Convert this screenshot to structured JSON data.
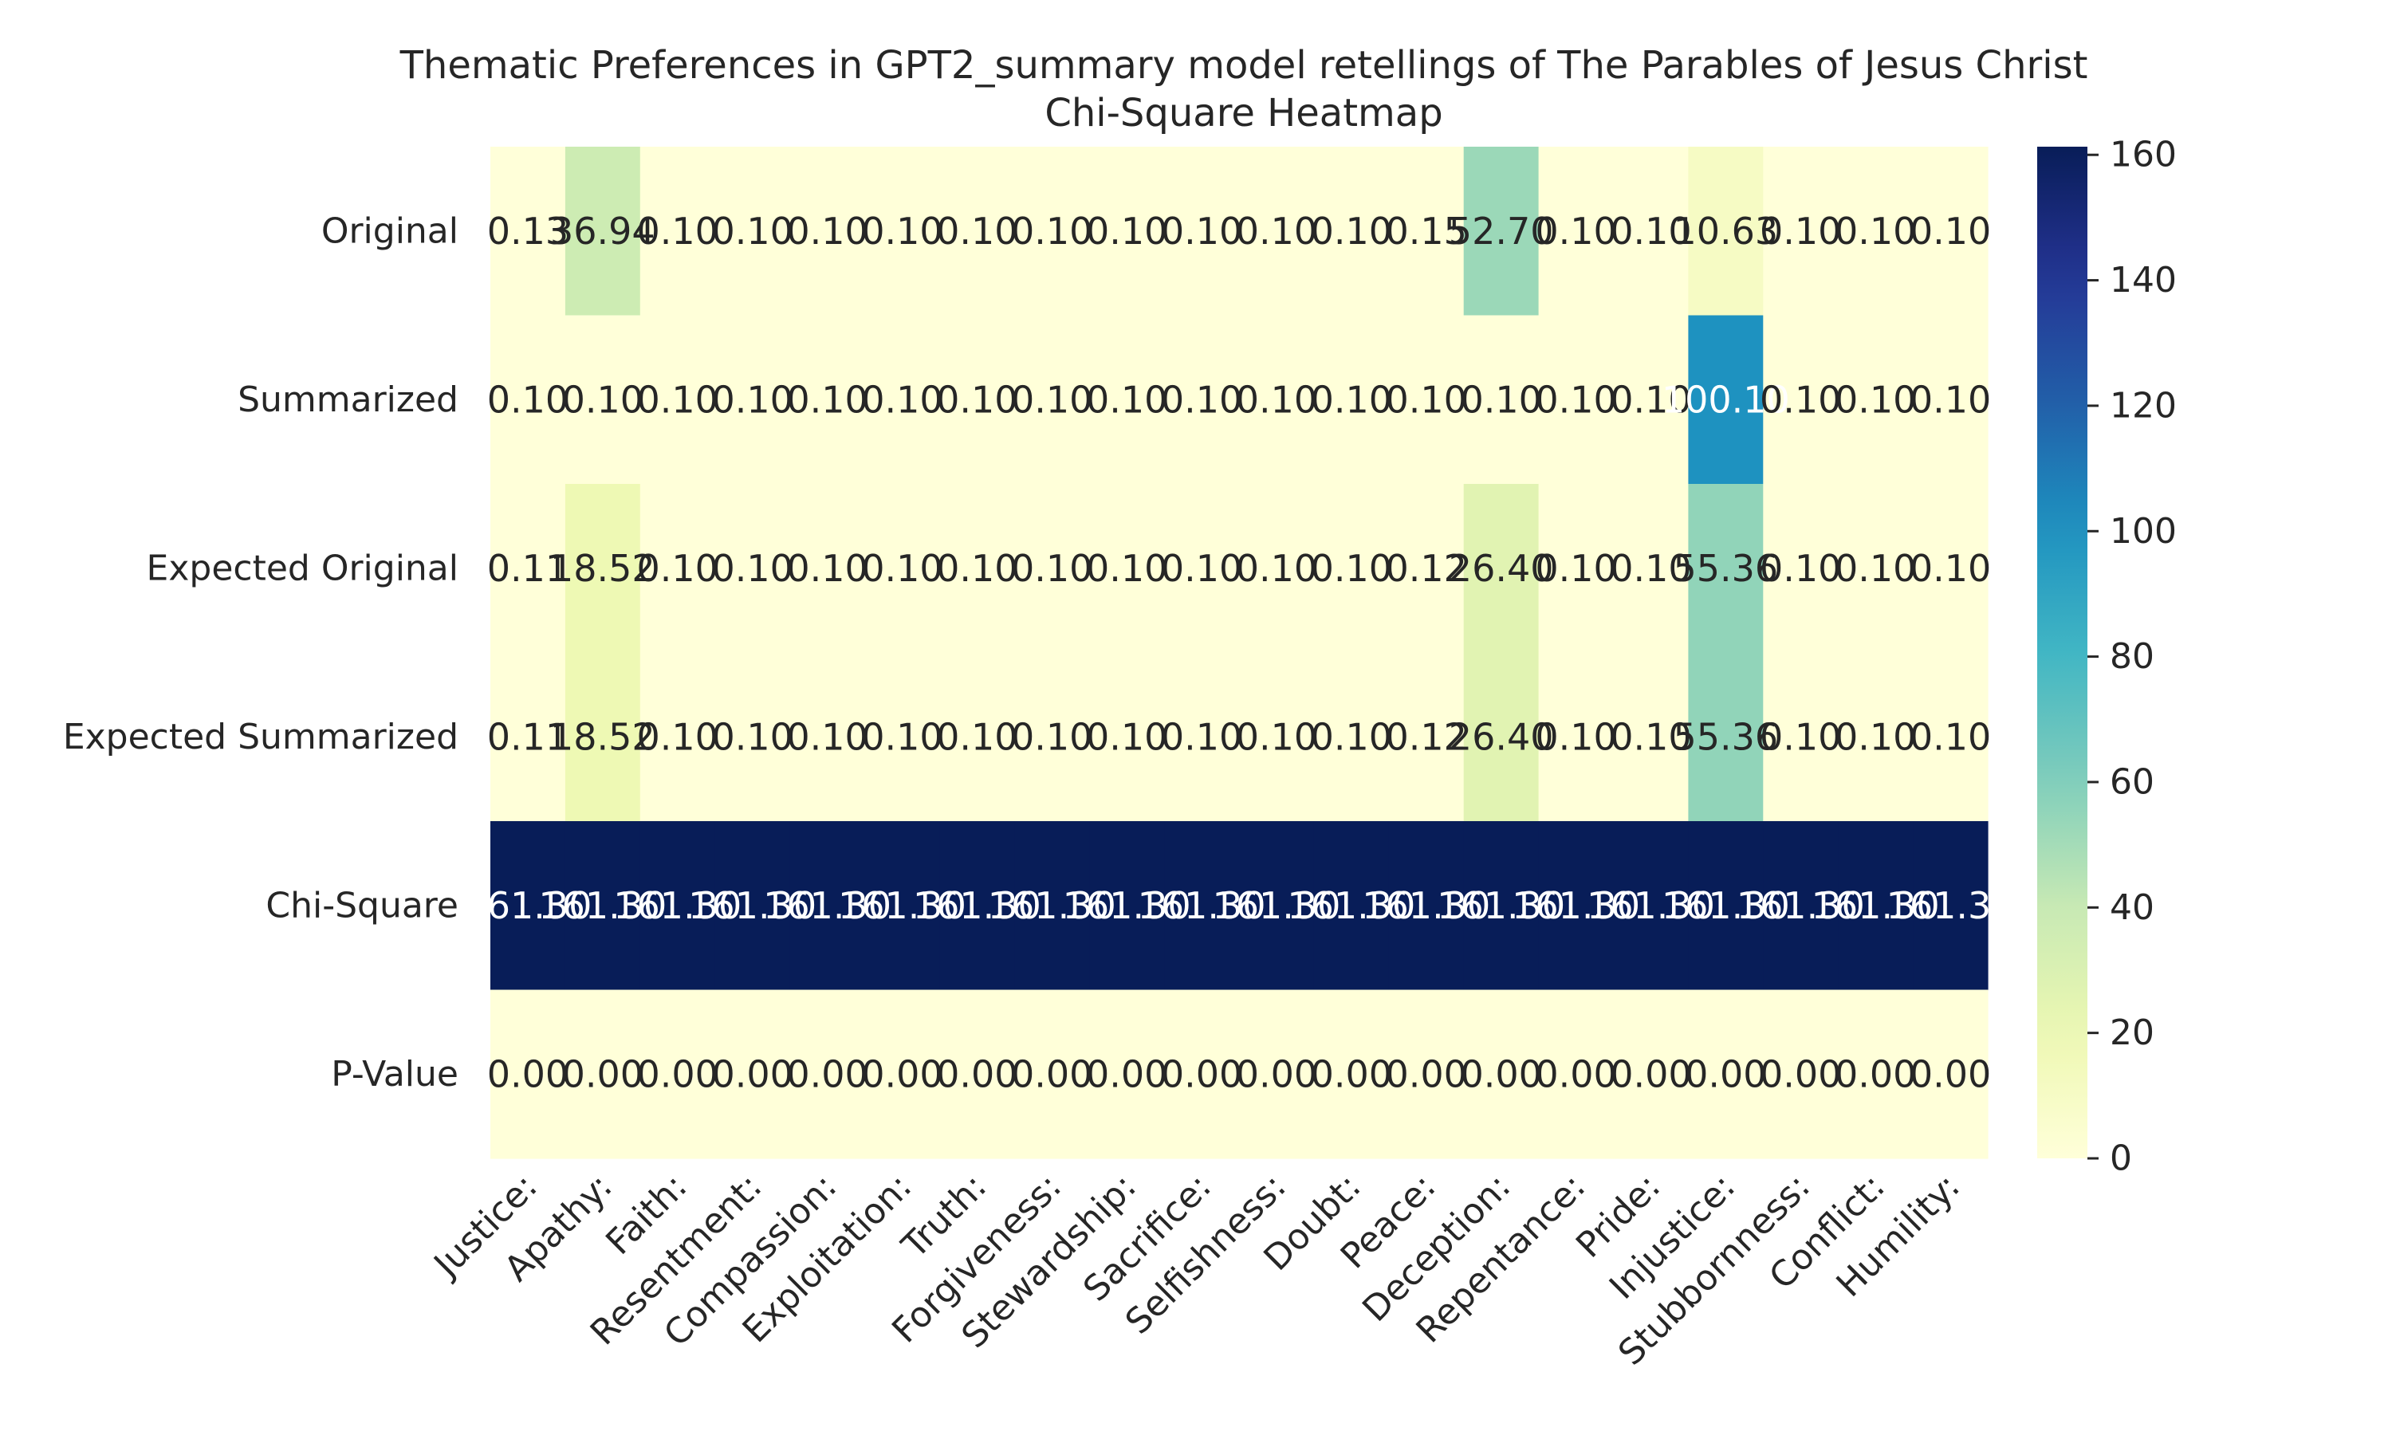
{
  "chart_data": {
    "type": "heatmap",
    "title": "Thematic Preferences in GPT2_summary model retellings of The Parables of Jesus Christ",
    "subtitle": "Chi-Square Heatmap",
    "xlabel": "",
    "ylabel": "",
    "colormap": "YlGnBu",
    "colorbar": {
      "min": 0,
      "max": 161.3,
      "ticks": [
        0,
        20,
        40,
        60,
        80,
        100,
        120,
        140,
        160
      ]
    },
    "x_labels": [
      "Justice:",
      "Apathy:",
      "Faith:",
      "Resentment:",
      "Compassion:",
      "Exploitation:",
      "Truth:",
      "Forgiveness:",
      "Stewardship:",
      "Sacrifice:",
      "Selfishness:",
      "Doubt:",
      "Peace:",
      "Deception:",
      "Repentance:",
      "Pride:",
      "Injustice:",
      "Stubbornness:",
      "Conflict:",
      "Humility:"
    ],
    "y_labels": [
      "Original",
      "Summarized",
      "Expected Original",
      "Expected Summarized",
      "Chi-Square",
      "P-Value"
    ],
    "values": [
      [
        0.13,
        36.94,
        0.1,
        0.1,
        0.1,
        0.1,
        0.1,
        0.1,
        0.1,
        0.1,
        0.1,
        0.1,
        0.15,
        52.7,
        0.1,
        0.1,
        10.63,
        0.1,
        0.1,
        0.1
      ],
      [
        0.1,
        0.1,
        0.1,
        0.1,
        0.1,
        0.1,
        0.1,
        0.1,
        0.1,
        0.1,
        0.1,
        0.1,
        0.1,
        0.1,
        0.1,
        0.1,
        100.1,
        0.1,
        0.1,
        0.1
      ],
      [
        0.11,
        18.52,
        0.1,
        0.1,
        0.1,
        0.1,
        0.1,
        0.1,
        0.1,
        0.1,
        0.1,
        0.1,
        0.12,
        26.4,
        0.1,
        0.1,
        55.36,
        0.1,
        0.1,
        0.1
      ],
      [
        0.11,
        18.52,
        0.1,
        0.1,
        0.1,
        0.1,
        0.1,
        0.1,
        0.1,
        0.1,
        0.1,
        0.1,
        0.12,
        26.4,
        0.1,
        0.1,
        55.36,
        0.1,
        0.1,
        0.1
      ],
      [
        161.3,
        161.3,
        161.3,
        161.3,
        161.3,
        161.3,
        161.3,
        161.3,
        161.3,
        161.3,
        161.3,
        161.3,
        161.3,
        161.3,
        161.3,
        161.3,
        161.3,
        161.3,
        161.3,
        161.3
      ],
      [
        0.0,
        0.0,
        0.0,
        0.0,
        0.0,
        0.0,
        0.0,
        0.0,
        0.0,
        0.0,
        0.0,
        0.0,
        0.0,
        0.0,
        0.0,
        0.0,
        0.0,
        0.0,
        0.0,
        0.0
      ]
    ],
    "value_format": "2 decimals",
    "grid": false,
    "legend": "colorbar-right"
  }
}
